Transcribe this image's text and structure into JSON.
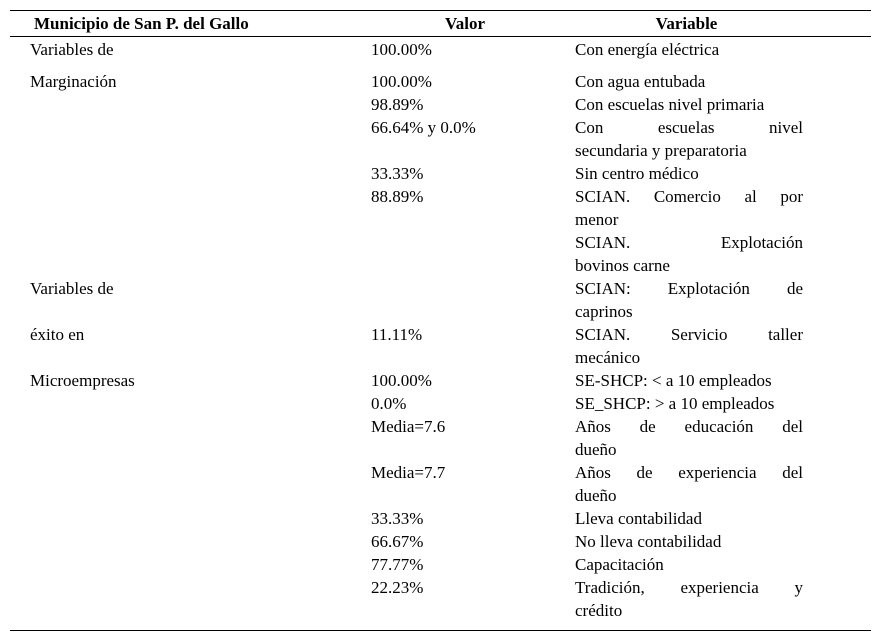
{
  "table": {
    "headers": {
      "municipio": "Municipio de San P. del Gallo",
      "valor": "Valor",
      "variable": "Variable"
    },
    "rows": [
      {
        "grupo": "Variables de",
        "valor": "100.00%",
        "variable": "Con energía eléctrica",
        "lines": [
          "Con energía eléctrica"
        ]
      },
      {
        "grupo": "Marginación",
        "valor": "100.00%",
        "variable": "Con agua entubada",
        "lines": [
          "Con agua entubada"
        ]
      },
      {
        "grupo": "",
        "valor": "98.89%",
        "variable": "Con escuelas nivel primaria",
        "lines": [
          "Con escuelas nivel primaria"
        ]
      },
      {
        "grupo": "",
        "valor": "66.64% y 0.0%",
        "variable": "Con escuelas nivel secundaria y preparatoria",
        "lines": [
          "Con escuelas nivel",
          "secundaria y preparatoria"
        ]
      },
      {
        "grupo": "",
        "valor": "33.33%",
        "variable": "Sin centro médico",
        "lines": [
          "Sin centro médico"
        ]
      },
      {
        "grupo": "",
        "valor": "88.89%",
        "variable": "SCIAN. Comercio al por menor",
        "lines": [
          "SCIAN. Comercio al por",
          "menor"
        ]
      },
      {
        "grupo": "",
        "valor": "",
        "variable": "SCIAN. Explotación bovinos carne",
        "lines": [
          "SCIAN. Explotación",
          "bovinos carne"
        ]
      },
      {
        "grupo": "Variables de",
        "valor": "",
        "variable": "SCIAN: Explotación de caprinos",
        "lines": [
          "SCIAN: Explotación de",
          "caprinos"
        ]
      },
      {
        "grupo": "éxito en",
        "valor": "11.11%",
        "variable": "SCIAN. Servicio taller mecánico",
        "lines": [
          "SCIAN. Servicio taller",
          "mecánico"
        ]
      },
      {
        "grupo": "Microempresas",
        "valor": "100.00%",
        "variable": "SE-SHCP: < a 10 empleados",
        "lines": [
          "SE-SHCP: < a 10 empleados"
        ]
      },
      {
        "grupo": "",
        "valor": "0.0%",
        "variable": "SE_SHCP: > a 10 empleados",
        "lines": [
          "SE_SHCP: > a 10 empleados"
        ]
      },
      {
        "grupo": "",
        "valor": "Media=7.6",
        "variable": "Años de educación del dueño",
        "lines": [
          "Años de educación del",
          "dueño"
        ]
      },
      {
        "grupo": "",
        "valor": "Media=7.7",
        "variable": "Años de experiencia del dueño",
        "lines": [
          "Años de experiencia del",
          "dueño"
        ]
      },
      {
        "grupo": "",
        "valor": "33.33%",
        "variable": "Lleva contabilidad",
        "lines": [
          "Lleva contabilidad"
        ]
      },
      {
        "grupo": "",
        "valor": "66.67%",
        "variable": "No lleva contabilidad",
        "lines": [
          "No lleva contabilidad"
        ]
      },
      {
        "grupo": "",
        "valor": "77.77%",
        "variable": "Capacitación",
        "lines": [
          "Capacitación"
        ]
      },
      {
        "grupo": "",
        "valor": "22.23%",
        "variable": "Tradición, experiencia y crédito",
        "lines": [
          "Tradición, experiencia y",
          "crédito"
        ]
      }
    ]
  }
}
